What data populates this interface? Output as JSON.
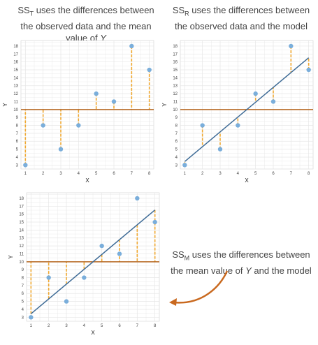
{
  "captions": {
    "t_pre": "SS",
    "t_sub": "T",
    "t_post": " uses the differences between the observed data and the mean value of ",
    "t_var": "Y",
    "r_pre": "SS",
    "r_sub": "R",
    "r_post": " uses the differences between the observed data and the model",
    "m_pre": "SS",
    "m_sub": "M",
    "m_post": " uses the differences between the mean value of ",
    "m_var": "Y",
    "m_post2": " and the model"
  },
  "colors": {
    "point": "#7aaedb",
    "mean_line": "#b5651d",
    "model_line": "#3e6b96",
    "residual": "#f0a830",
    "arrow": "#c9691f",
    "grid": "#e6e6e6"
  },
  "chart_data": [
    {
      "type": "scatter",
      "panel": "SS_T",
      "x": [
        1,
        2,
        3,
        4,
        5,
        6,
        7,
        8
      ],
      "y": [
        3,
        8,
        5,
        8,
        12,
        11,
        18,
        15
      ],
      "mean": 10,
      "xlabel": "X",
      "ylabel": "Y",
      "xlim": [
        0.75,
        8.25
      ],
      "ylim": [
        2.5,
        18.7
      ],
      "xticks": [
        1,
        2,
        3,
        4,
        5,
        6,
        7,
        8
      ],
      "yticks": [
        3,
        4,
        5,
        6,
        7,
        8,
        9,
        10,
        11,
        12,
        13,
        14,
        15,
        16,
        17,
        18
      ],
      "lines": [
        "mean"
      ],
      "residuals": "observed-mean",
      "grid": true
    },
    {
      "type": "scatter",
      "panel": "SS_R",
      "x": [
        1,
        2,
        3,
        4,
        5,
        6,
        7,
        8
      ],
      "y": [
        3,
        8,
        5,
        8,
        12,
        11,
        18,
        15
      ],
      "mean": 10,
      "model": {
        "intercept": 1.57,
        "slope": 1.87
      },
      "xlabel": "X",
      "ylabel": "Y",
      "xlim": [
        0.75,
        8.25
      ],
      "ylim": [
        2.5,
        18.7
      ],
      "xticks": [
        1,
        2,
        3,
        4,
        5,
        6,
        7,
        8
      ],
      "yticks": [
        3,
        4,
        5,
        6,
        7,
        8,
        9,
        10,
        11,
        12,
        13,
        14,
        15,
        16,
        17,
        18
      ],
      "lines": [
        "mean",
        "model"
      ],
      "residuals": "observed-model",
      "grid": true
    },
    {
      "type": "scatter",
      "panel": "SS_M",
      "x": [
        1,
        2,
        3,
        4,
        5,
        6,
        7,
        8
      ],
      "y": [
        3,
        8,
        5,
        8,
        12,
        11,
        18,
        15
      ],
      "mean": 10,
      "model": {
        "intercept": 1.57,
        "slope": 1.87
      },
      "xlabel": "X",
      "ylabel": "Y",
      "xlim": [
        0.75,
        8.25
      ],
      "ylim": [
        2.5,
        18.7
      ],
      "xticks": [
        1,
        2,
        3,
        4,
        5,
        6,
        7,
        8
      ],
      "yticks": [
        3,
        4,
        5,
        6,
        7,
        8,
        9,
        10,
        11,
        12,
        13,
        14,
        15,
        16,
        17,
        18
      ],
      "lines": [
        "mean",
        "model"
      ],
      "residuals": "model-mean",
      "grid": true
    }
  ]
}
